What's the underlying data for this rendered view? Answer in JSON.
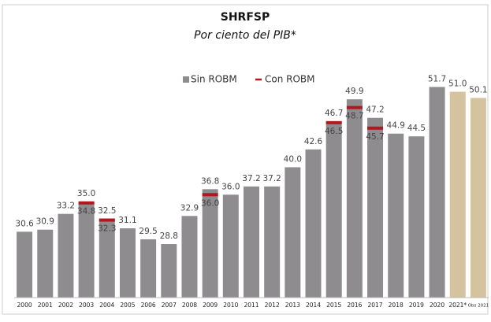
{
  "chart_data": {
    "type": "bar",
    "title": "SHRFSP",
    "subtitle": "Por ciento del PIB*",
    "categories": [
      "2000",
      "2001",
      "2002",
      "2003",
      "2004",
      "2005",
      "2006",
      "2007",
      "2008",
      "2009",
      "2010",
      "2011",
      "2012",
      "2013",
      "2014",
      "2015",
      "2016",
      "2017",
      "2018",
      "2019",
      "2020",
      "2021*",
      "Obs 2021"
    ],
    "series": [
      {
        "name": "Sin ROBM",
        "color": "#8e8c8f",
        "colors": [
          "#8e8c8f",
          "#8e8c8f",
          "#8e8c8f",
          "#8e8c8f",
          "#8e8c8f",
          "#8e8c8f",
          "#8e8c8f",
          "#8e8c8f",
          "#8e8c8f",
          "#8e8c8f",
          "#8e8c8f",
          "#8e8c8f",
          "#8e8c8f",
          "#8e8c8f",
          "#8e8c8f",
          "#8e8c8f",
          "#8e8c8f",
          "#8e8c8f",
          "#8e8c8f",
          "#8e8c8f",
          "#8e8c8f",
          "#d5c39f",
          "#d5c39f"
        ],
        "values": [
          30.6,
          30.9,
          33.2,
          35.0,
          32.5,
          31.1,
          29.5,
          28.8,
          32.9,
          36.8,
          36.0,
          37.2,
          37.2,
          40.0,
          42.6,
          46.7,
          49.9,
          47.2,
          44.9,
          44.5,
          51.7,
          51.0,
          50.1
        ],
        "value_labels": [
          "30.6",
          "30.9",
          "33.2",
          "35.0",
          "32.5",
          "31.1",
          "29.5",
          "28.8",
          "32.9",
          "36.8",
          "36.0",
          "37.2",
          "37.2",
          "40.0",
          "42.6",
          "46.7",
          "49.9",
          "47.2",
          "44.9",
          "44.5",
          "51.7",
          "51.0",
          "50.1"
        ]
      },
      {
        "name": "Con ROBM",
        "color": "#b0171f",
        "values": [
          null,
          null,
          null,
          34.8,
          32.3,
          null,
          null,
          null,
          null,
          36.0,
          null,
          null,
          null,
          null,
          null,
          46.5,
          48.7,
          45.7,
          null,
          null,
          null,
          null,
          null
        ],
        "value_labels": [
          null,
          null,
          null,
          "34.8",
          "32.3",
          null,
          null,
          null,
          null,
          "36.0",
          null,
          null,
          null,
          null,
          null,
          "46.5",
          "48.7",
          "45.7",
          null,
          null,
          null,
          null,
          null
        ]
      }
    ],
    "ylim": [
      21,
      56
    ]
  }
}
